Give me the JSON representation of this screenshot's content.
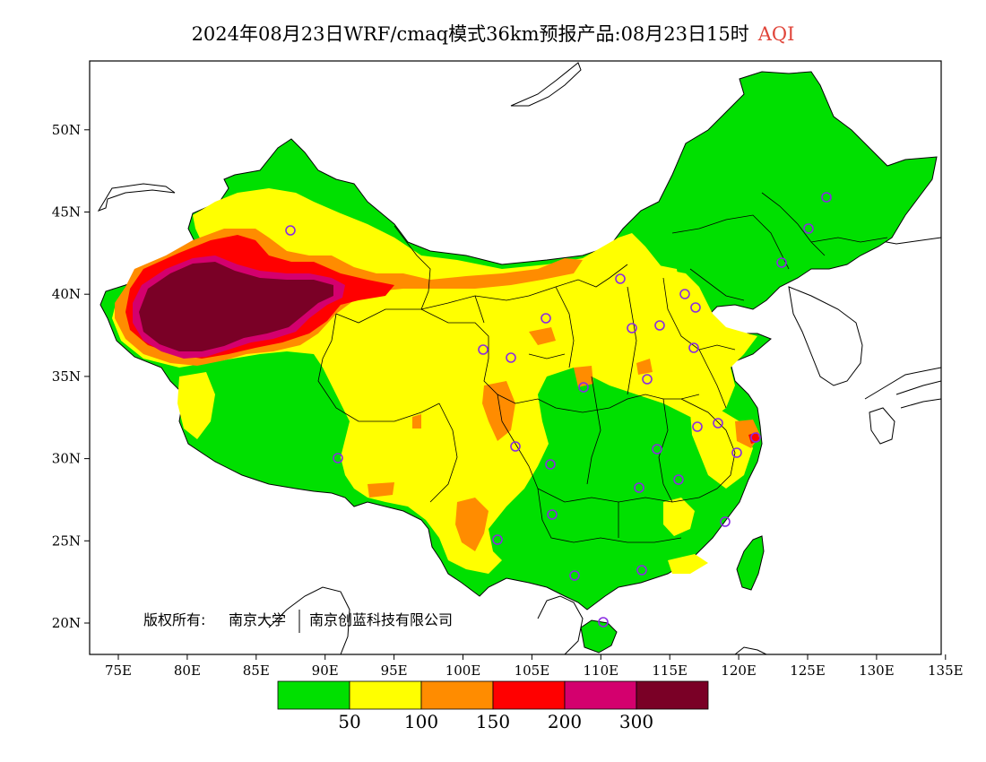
{
  "title": {
    "main": "2024年08月23日WRF/cmaq模式36km预报产品:08月23日15时",
    "pollutant": "AQI"
  },
  "axes": {
    "lon_labels": [
      "75E",
      "80E",
      "85E",
      "90E",
      "95E",
      "100E",
      "105E",
      "110E",
      "115E",
      "120E",
      "125E",
      "130E",
      "135E"
    ],
    "lat_labels": [
      "20N",
      "25N",
      "30N",
      "35N",
      "40N",
      "45N",
      "50N"
    ]
  },
  "colorbar": {
    "colors": [
      "#00e000",
      "#ffff00",
      "#ff8c00",
      "#ff0000",
      "#d4006e",
      "#7a0026"
    ],
    "thresholds": [
      "50",
      "100",
      "150",
      "200",
      "300"
    ]
  },
  "credit": {
    "prefix": "版权所有:",
    "org1": "南京大学",
    "org2": "南京创蓝科技有限公司"
  },
  "stations": {
    "marker_color": "#8a2be2"
  }
}
